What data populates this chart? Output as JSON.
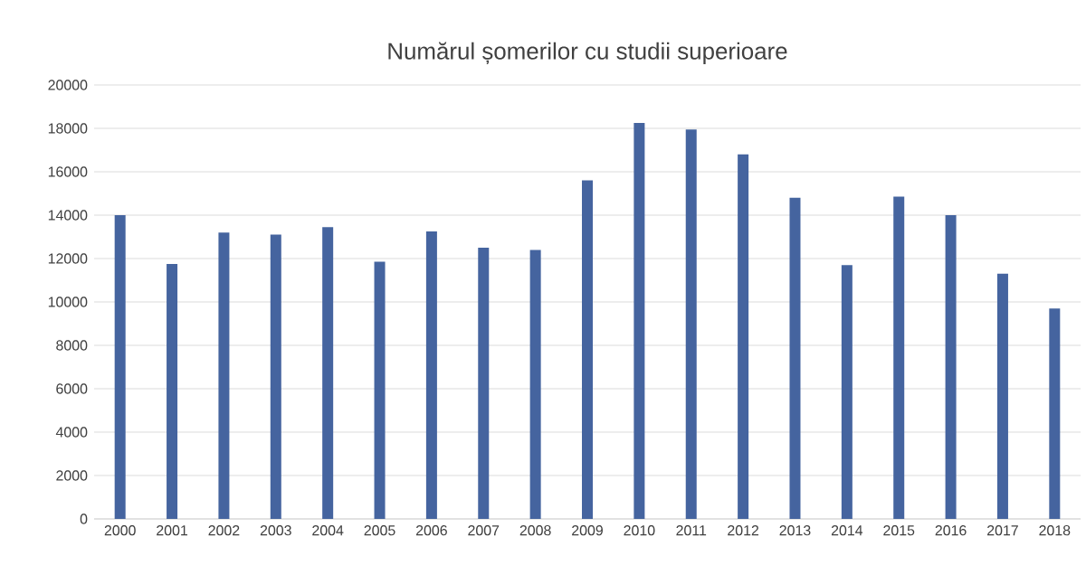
{
  "chart_data": {
    "type": "bar",
    "title": "Numărul șomerilor cu studii superioare",
    "categories": [
      "2000",
      "2001",
      "2002",
      "2003",
      "2004",
      "2005",
      "2006",
      "2007",
      "2008",
      "2009",
      "2010",
      "2011",
      "2012",
      "2013",
      "2014",
      "2015",
      "2016",
      "2017",
      "2018"
    ],
    "values": [
      14000,
      11750,
      13200,
      13100,
      13450,
      11850,
      13250,
      12500,
      12400,
      15600,
      18250,
      17950,
      16800,
      14800,
      11700,
      14850,
      14000,
      11300,
      9700
    ],
    "color": "#45649f",
    "ylim": [
      0,
      20000
    ],
    "yticks": [
      0,
      2000,
      4000,
      6000,
      8000,
      10000,
      12000,
      14000,
      16000,
      18000,
      20000
    ],
    "grid": "y"
  }
}
